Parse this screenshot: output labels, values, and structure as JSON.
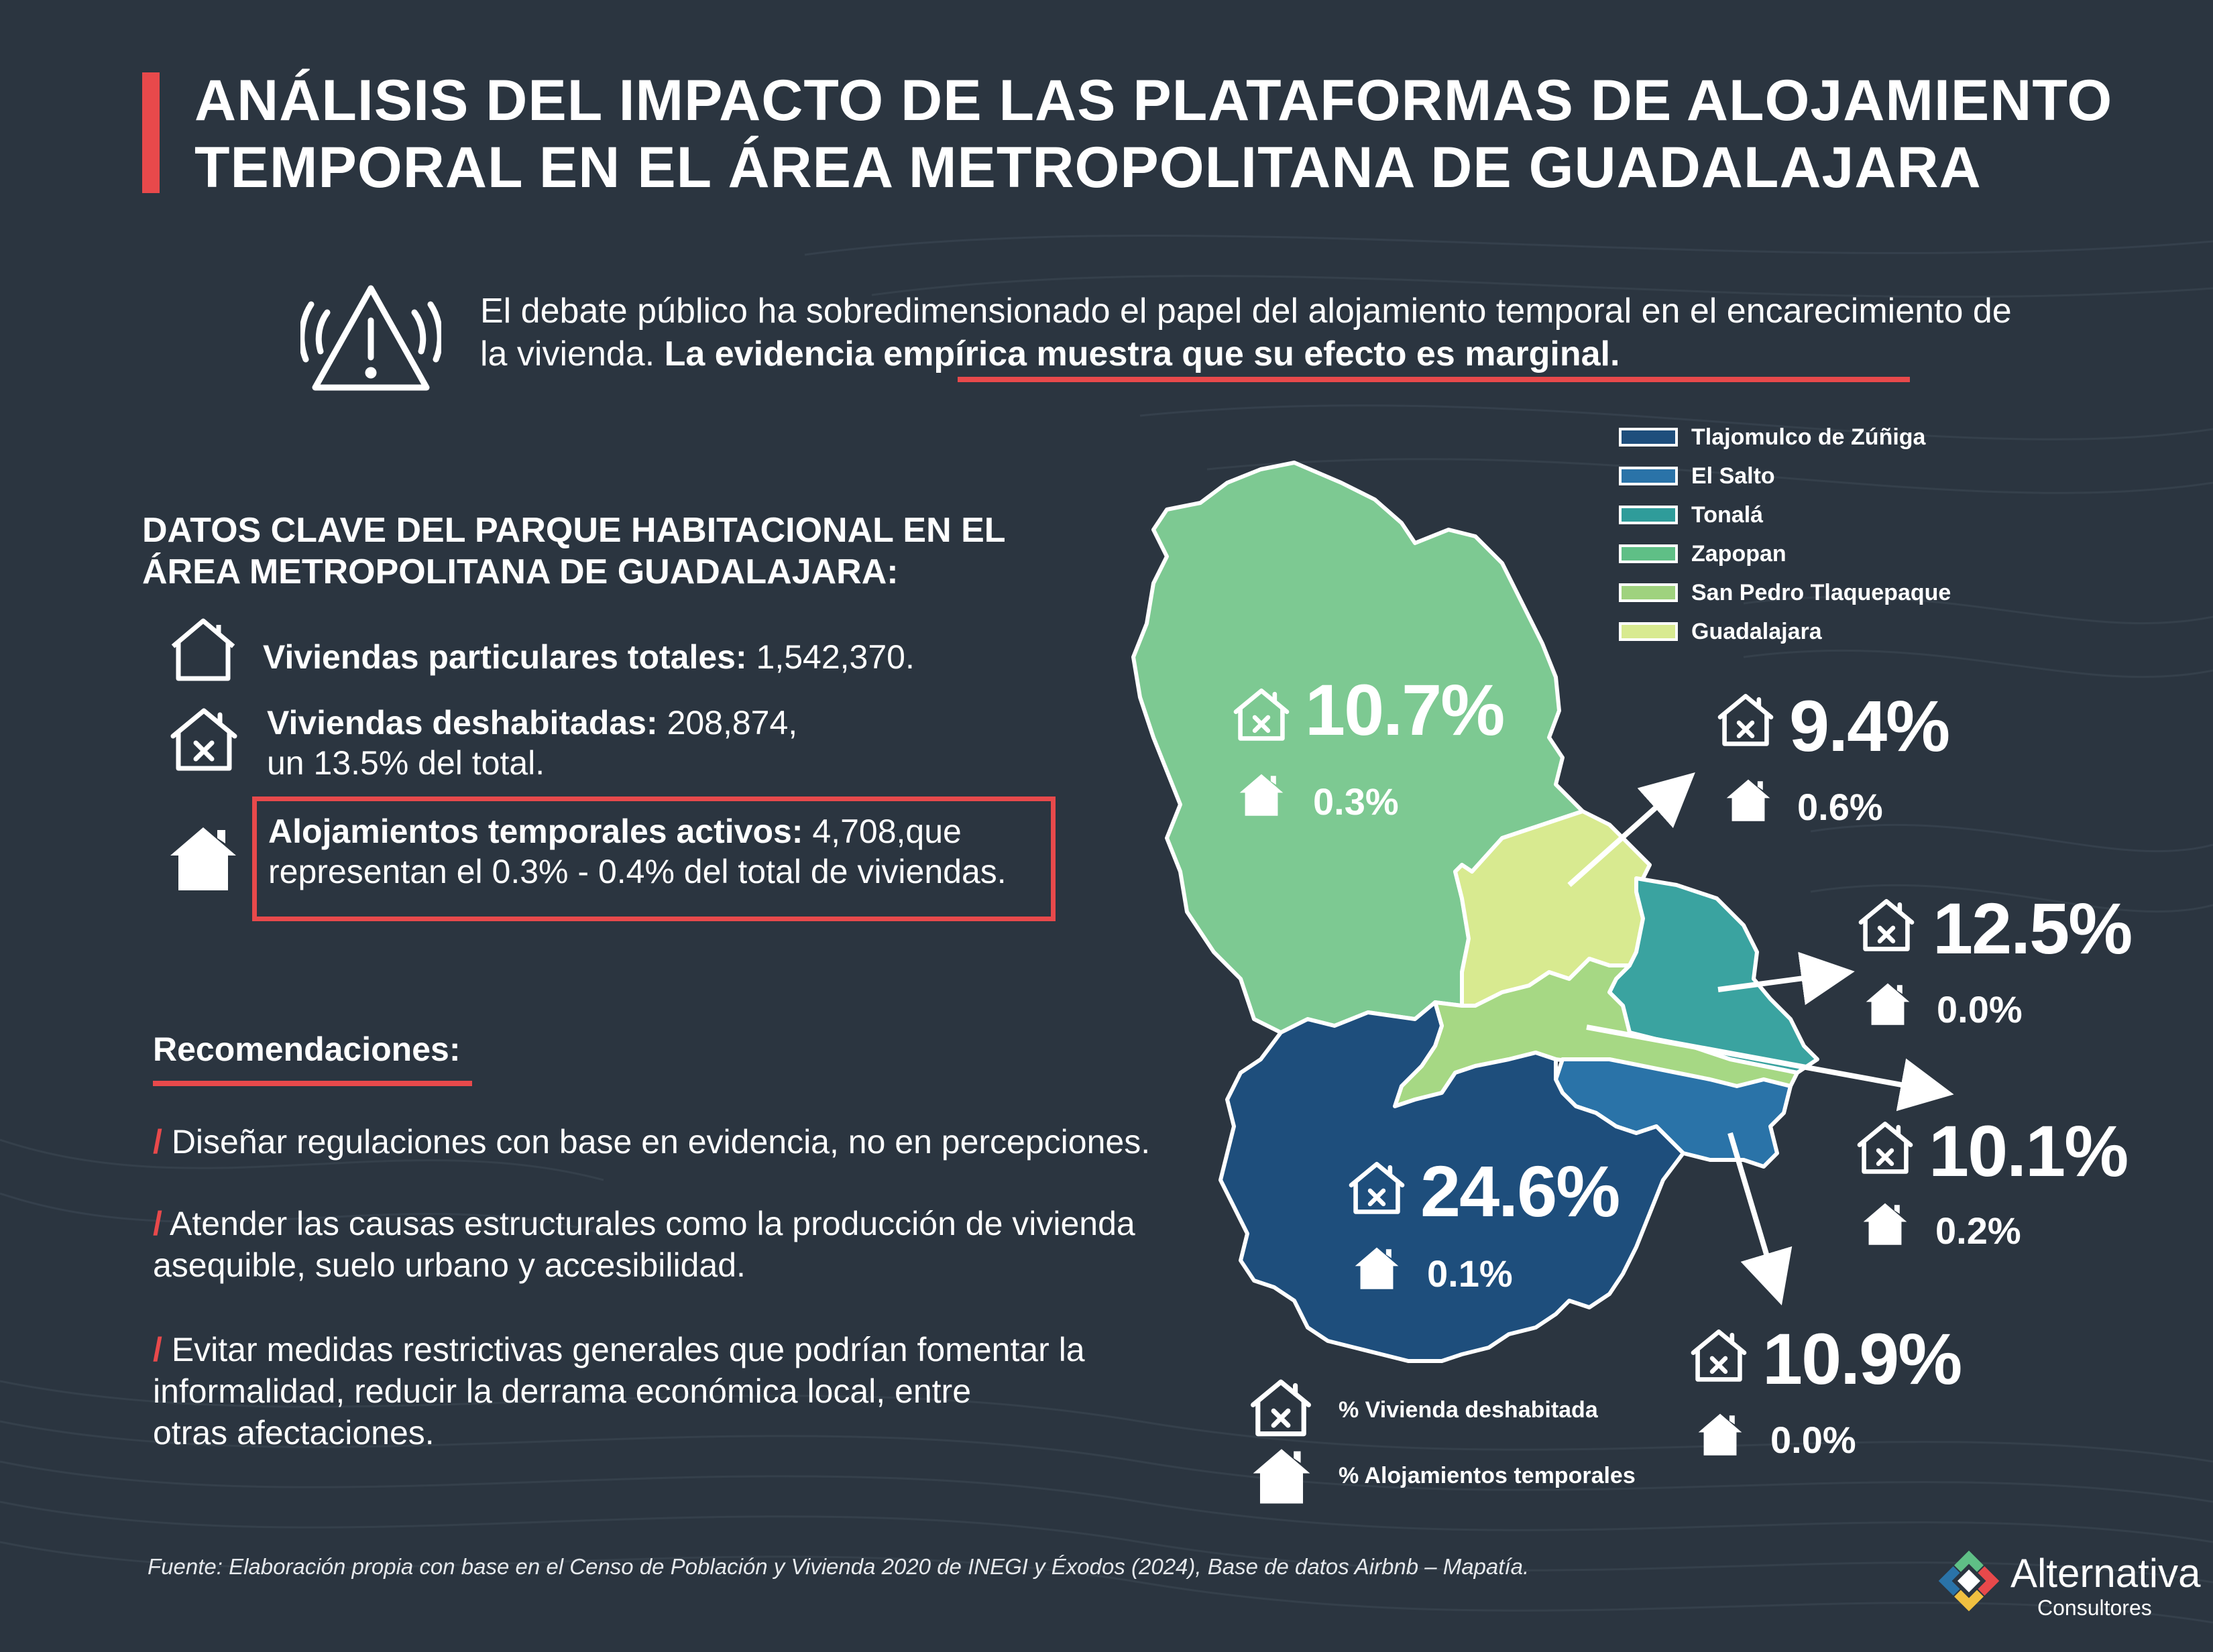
{
  "title": "ANÁLISIS DEL IMPACTO DE LAS PLATAFORMAS DE ALOJAMIENTO TEMPORAL EN EL ÁREA METROPOLITANA DE GUADALAJARA",
  "intro": {
    "text": "El debate público ha sobredimensionado el papel del alojamiento temporal en el encarecimiento de la vivienda.",
    "emphasis": "La evidencia empírica muestra que su efecto es marginal."
  },
  "key_data": {
    "title": "DATOS CLAVE DEL PARQUE HABITACIONAL EN EL ÁREA METROPOLITANA DE GUADALAJARA:",
    "items": [
      {
        "label": "Viviendas particulares totales:",
        "value": "1,542,370."
      },
      {
        "label": "Viviendas deshabitadas:",
        "value": "208,874,",
        "extra": "un 13.5% del total."
      },
      {
        "label": "Alojamientos temporales activos:",
        "value": "4,708,que",
        "extra": "representan el 0.3% - 0.4% del total de viviendas."
      }
    ]
  },
  "recommendations": {
    "title": "Recomendaciones:",
    "slash": "/",
    "items": [
      {
        "line1": "Diseñar regulaciones con base en evidencia, no en percepciones.",
        "line2": "",
        "line3": ""
      },
      {
        "line1": "Atender las causas estructurales como la producción de vivienda",
        "line2": "asequible, suelo urbano y accesibilidad.",
        "line3": ""
      },
      {
        "line1": "Evitar medidas restrictivas generales que podrían fomentar la",
        "line2": "informalidad, reducir la derrama económica local, entre",
        "line3": "otras afectaciones."
      }
    ]
  },
  "legend": [
    {
      "name": "Tlajomulco de Zúñiga",
      "color": "#1e4e7c"
    },
    {
      "name": "El Salto",
      "color": "#2a73a8"
    },
    {
      "name": "Tonalá",
      "color": "#2f9c9a"
    },
    {
      "name": "Zapopan",
      "color": "#5fbf86"
    },
    {
      "name": "San Pedro Tlaquepaque",
      "color": "#9fd27e"
    },
    {
      "name": "Guadalajara",
      "color": "#d8ea90"
    }
  ],
  "municipalities": [
    {
      "name": "Zapopan",
      "vacant": "10.7%",
      "temporary": "0.3%"
    },
    {
      "name": "Guadalajara",
      "vacant": "9.4%",
      "temporary": "0.6%"
    },
    {
      "name": "Tonalá",
      "vacant": "12.5%",
      "temporary": "0.0%"
    },
    {
      "name": "San Pedro Tlaquepaque",
      "vacant": "10.1%",
      "temporary": "0.2%"
    },
    {
      "name": "Tlajomulco de Zúñiga",
      "vacant": "24.6%",
      "temporary": "0.1%"
    },
    {
      "name": "El Salto",
      "vacant": "10.9%",
      "temporary": "0.0%"
    }
  ],
  "map_key": {
    "vacant": "% Vivienda deshabitada",
    "temporary": "% Alojamientos temporales"
  },
  "footnote": "Fuente: Elaboración propia con base en el Censo de Población y Vivienda 2020 de INEGI y Éxodos (2024), Base de datos Airbnb – Mapatía.",
  "logo": {
    "name": "Alternativa",
    "sub": "Consultores"
  },
  "colors": {
    "background": "#2b3540",
    "accent": "#e8494b"
  }
}
